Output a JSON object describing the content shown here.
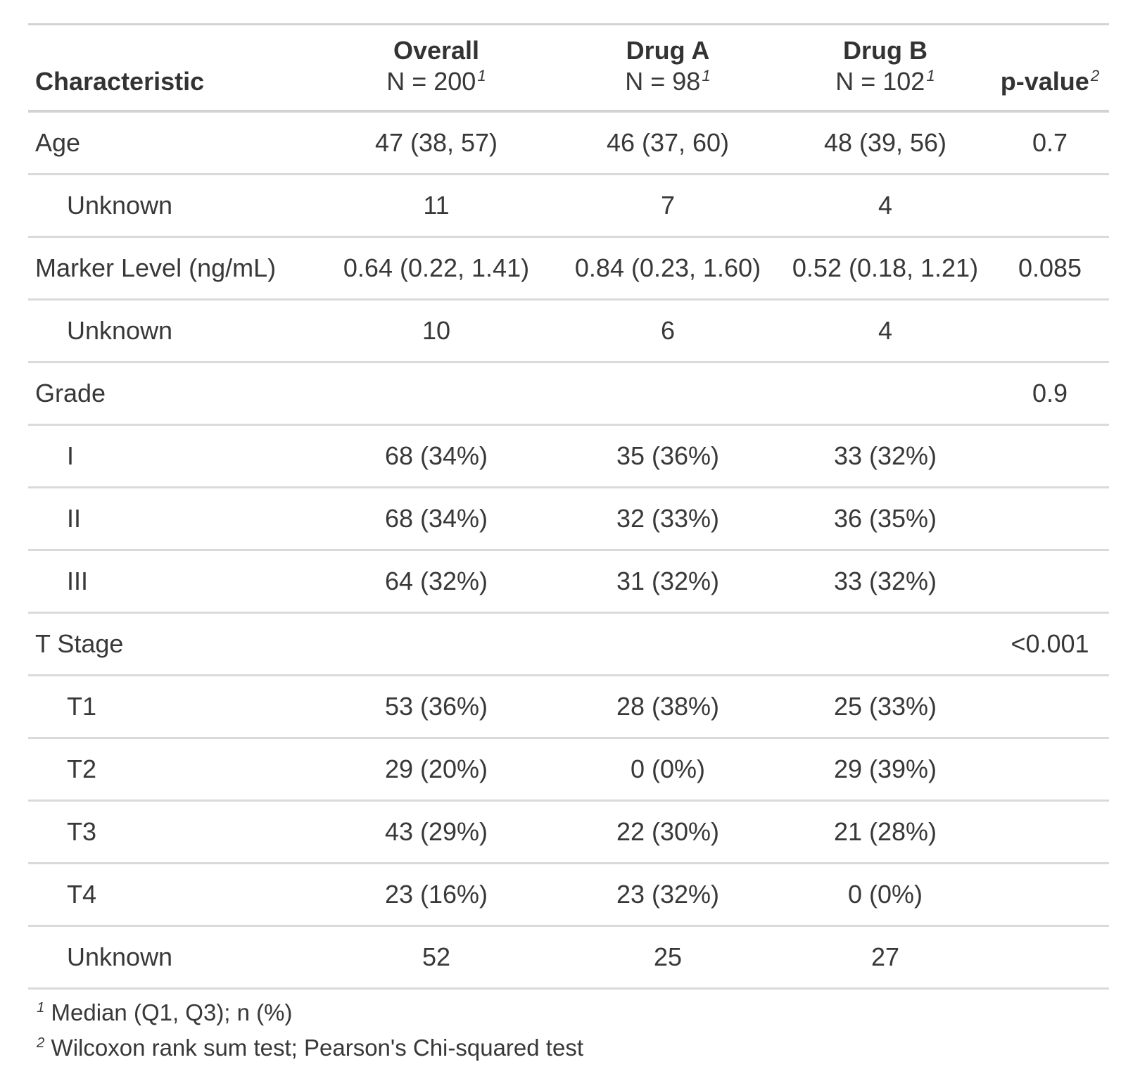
{
  "colors": {
    "background": "#ffffff",
    "text": "#383838",
    "header_text": "#333333",
    "border_light": "#d3d3d3",
    "row_border": "#dadada",
    "table_bottom_border": "#acacac"
  },
  "table": {
    "columns": [
      {
        "label": "Characteristic",
        "sublabel": "",
        "footnote_mark": ""
      },
      {
        "label": "Overall",
        "sublabel": "N = 200",
        "footnote_mark": "1"
      },
      {
        "label": "Drug A",
        "sublabel": "N = 98",
        "footnote_mark": "1"
      },
      {
        "label": "Drug B",
        "sublabel": "N = 102",
        "footnote_mark": "1"
      },
      {
        "label": "p-value",
        "sublabel": "",
        "footnote_mark": "2"
      }
    ],
    "rows": [
      {
        "label": "Age",
        "indent": false,
        "overall": "47 (38, 57)",
        "drug_a": "46 (37, 60)",
        "drug_b": "48 (39, 56)",
        "p_value": "0.7"
      },
      {
        "label": "Unknown",
        "indent": true,
        "overall": "11",
        "drug_a": "7",
        "drug_b": "4",
        "p_value": ""
      },
      {
        "label": "Marker Level (ng/mL)",
        "indent": false,
        "overall": "0.64 (0.22, 1.41)",
        "drug_a": "0.84 (0.23, 1.60)",
        "drug_b": "0.52 (0.18, 1.21)",
        "p_value": "0.085"
      },
      {
        "label": "Unknown",
        "indent": true,
        "overall": "10",
        "drug_a": "6",
        "drug_b": "4",
        "p_value": ""
      },
      {
        "label": "Grade",
        "indent": false,
        "overall": "",
        "drug_a": "",
        "drug_b": "",
        "p_value": "0.9"
      },
      {
        "label": "I",
        "indent": true,
        "overall": "68 (34%)",
        "drug_a": "35 (36%)",
        "drug_b": "33 (32%)",
        "p_value": ""
      },
      {
        "label": "II",
        "indent": true,
        "overall": "68 (34%)",
        "drug_a": "32 (33%)",
        "drug_b": "36 (35%)",
        "p_value": ""
      },
      {
        "label": "III",
        "indent": true,
        "overall": "64 (32%)",
        "drug_a": "31 (32%)",
        "drug_b": "33 (32%)",
        "p_value": ""
      },
      {
        "label": "T Stage",
        "indent": false,
        "overall": "",
        "drug_a": "",
        "drug_b": "",
        "p_value": "<0.001"
      },
      {
        "label": "T1",
        "indent": true,
        "overall": "53 (36%)",
        "drug_a": "28 (38%)",
        "drug_b": "25 (33%)",
        "p_value": ""
      },
      {
        "label": "T2",
        "indent": true,
        "overall": "29 (20%)",
        "drug_a": "0 (0%)",
        "drug_b": "29 (39%)",
        "p_value": ""
      },
      {
        "label": "T3",
        "indent": true,
        "overall": "43 (29%)",
        "drug_a": "22 (30%)",
        "drug_b": "21 (28%)",
        "p_value": ""
      },
      {
        "label": "T4",
        "indent": true,
        "overall": "23 (16%)",
        "drug_a": "23 (32%)",
        "drug_b": "0 (0%)",
        "p_value": ""
      },
      {
        "label": "Unknown",
        "indent": true,
        "overall": "52",
        "drug_a": "25",
        "drug_b": "27",
        "p_value": ""
      }
    ],
    "footnotes": [
      {
        "mark": "1",
        "text": "Median (Q1, Q3); n (%)"
      },
      {
        "mark": "2",
        "text": "Wilcoxon rank sum test; Pearson's Chi-squared test"
      }
    ]
  },
  "chart_data": {
    "type": "table",
    "title": "",
    "columns": [
      "Characteristic",
      "Overall N = 200",
      "Drug A N = 98",
      "Drug B N = 102",
      "p-value"
    ],
    "rows": [
      [
        "Age",
        "47 (38, 57)",
        "46 (37, 60)",
        "48 (39, 56)",
        "0.7"
      ],
      [
        "Unknown",
        "11",
        "7",
        "4",
        ""
      ],
      [
        "Marker Level (ng/mL)",
        "0.64 (0.22, 1.41)",
        "0.84 (0.23, 1.60)",
        "0.52 (0.18, 1.21)",
        "0.085"
      ],
      [
        "Unknown",
        "10",
        "6",
        "4",
        ""
      ],
      [
        "Grade",
        "",
        "",
        "",
        "0.9"
      ],
      [
        "I",
        "68 (34%)",
        "35 (36%)",
        "33 (32%)",
        ""
      ],
      [
        "II",
        "68 (34%)",
        "32 (33%)",
        "36 (35%)",
        ""
      ],
      [
        "III",
        "64 (32%)",
        "31 (32%)",
        "33 (32%)",
        ""
      ],
      [
        "T Stage",
        "",
        "",
        "",
        "<0.001"
      ],
      [
        "T1",
        "53 (36%)",
        "28 (38%)",
        "25 (33%)",
        ""
      ],
      [
        "T2",
        "29 (20%)",
        "0 (0%)",
        "29 (39%)",
        ""
      ],
      [
        "T3",
        "43 (29%)",
        "22 (30%)",
        "21 (28%)",
        ""
      ],
      [
        "T4",
        "23 (16%)",
        "23 (32%)",
        "0 (0%)",
        ""
      ],
      [
        "Unknown",
        "52",
        "25",
        "27",
        ""
      ]
    ],
    "footnotes": [
      "1 Median (Q1, Q3); n (%)",
      "2 Wilcoxon rank sum test; Pearson's Chi-squared test"
    ]
  }
}
